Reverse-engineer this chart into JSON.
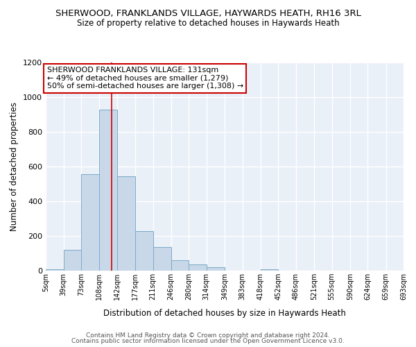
{
  "title": "SHERWOOD, FRANKLANDS VILLAGE, HAYWARDS HEATH, RH16 3RL",
  "subtitle": "Size of property relative to detached houses in Haywards Heath",
  "xlabel": "Distribution of detached houses by size in Haywards Heath",
  "ylabel": "Number of detached properties",
  "bar_edges": [
    5,
    39,
    73,
    108,
    142,
    177,
    211,
    246,
    280,
    314,
    349,
    383,
    418,
    452,
    486,
    521,
    555,
    590,
    624,
    659,
    693
  ],
  "bar_heights": [
    10,
    120,
    555,
    930,
    545,
    230,
    138,
    60,
    35,
    20,
    0,
    0,
    10,
    0,
    0,
    0,
    0,
    0,
    0,
    0
  ],
  "bar_color": "#c8d8e8",
  "bar_edge_color": "#7aaac8",
  "vline_x": 131,
  "vline_color": "#cc0000",
  "annotation_text": "SHERWOOD FRANKLANDS VILLAGE: 131sqm\n← 49% of detached houses are smaller (1,279)\n50% of semi-detached houses are larger (1,308) →",
  "annotation_box_color": "white",
  "annotation_box_edge_color": "#cc0000",
  "ylim": [
    0,
    1200
  ],
  "background_color": "#eaf0f8",
  "grid_color": "white",
  "footer_line1": "Contains HM Land Registry data © Crown copyright and database right 2024.",
  "footer_line2": "Contains public sector information licensed under the Open Government Licence v3.0.",
  "tick_labels": [
    "5sqm",
    "39sqm",
    "73sqm",
    "108sqm",
    "142sqm",
    "177sqm",
    "211sqm",
    "246sqm",
    "280sqm",
    "314sqm",
    "349sqm",
    "383sqm",
    "418sqm",
    "452sqm",
    "486sqm",
    "521sqm",
    "555sqm",
    "590sqm",
    "624sqm",
    "659sqm",
    "693sqm"
  ]
}
